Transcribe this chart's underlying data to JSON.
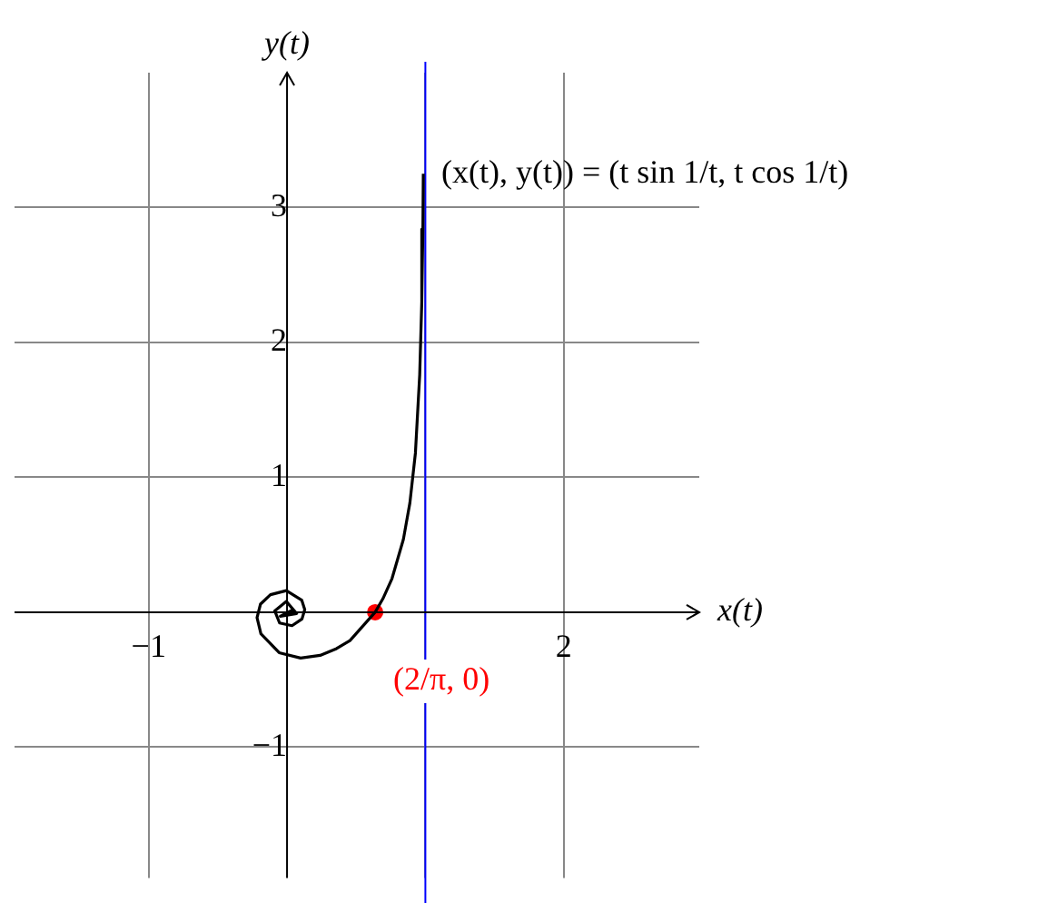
{
  "chart_data": {
    "type": "line",
    "xlabel": "x(t)",
    "ylabel": "y(t)",
    "xlim": [
      -1.97,
      2.98
    ],
    "ylim": [
      -1.97,
      4.0
    ],
    "xticks": [
      {
        "value": -1,
        "label": "−1"
      },
      {
        "value": 1,
        "label": null
      },
      {
        "value": 2,
        "label": "2"
      }
    ],
    "yticks": [
      {
        "value": -1,
        "label": "−1"
      },
      1,
      2,
      3
    ],
    "grid": true,
    "legend": false,
    "series": [
      {
        "type": "line",
        "color": "#000000",
        "x": [
          0.985,
          0.982,
          0.974,
          0.959,
          0.928,
          0.888,
          0.841,
          0.759,
          0.693,
          0.637,
          0.455,
          0.358,
          0.239,
          0.098,
          -0.057,
          -0.189,
          -0.217,
          -0.192,
          -0.12,
          -0.005,
          0.106,
          0.128,
          0.108,
          0.036,
          -0.054,
          -0.089,
          -0.005,
          0.069,
          -0.049,
          0.046
        ],
        "values": [
          3.25,
          2.84,
          2.3,
          1.76,
          1.18,
          0.81,
          0.54,
          0.25,
          0.1,
          0,
          -0.21,
          -0.27,
          -0.32,
          -0.34,
          -0.3,
          -0.16,
          -0.04,
          0.06,
          0.13,
          0.16,
          0.09,
          0.02,
          -0.05,
          -0.1,
          -0.08,
          0.01,
          0.08,
          -0.01,
          -0.03,
          0.02
        ]
      },
      {
        "type": "scatter",
        "color": "#ff0000",
        "x": [
          0.637
        ],
        "values": [
          0
        ]
      }
    ],
    "ref_lines": [
      {
        "axis": "x",
        "value": 1,
        "color": "#0000ff"
      }
    ],
    "annotations": [
      {
        "text": "(2/π, 0)",
        "x": 0.637,
        "y": 0
      },
      {
        "text": "(x(t), y(t)) = (t sin 1/t, t cos 1/t)",
        "x": 0.985,
        "y": 3.25
      }
    ]
  }
}
